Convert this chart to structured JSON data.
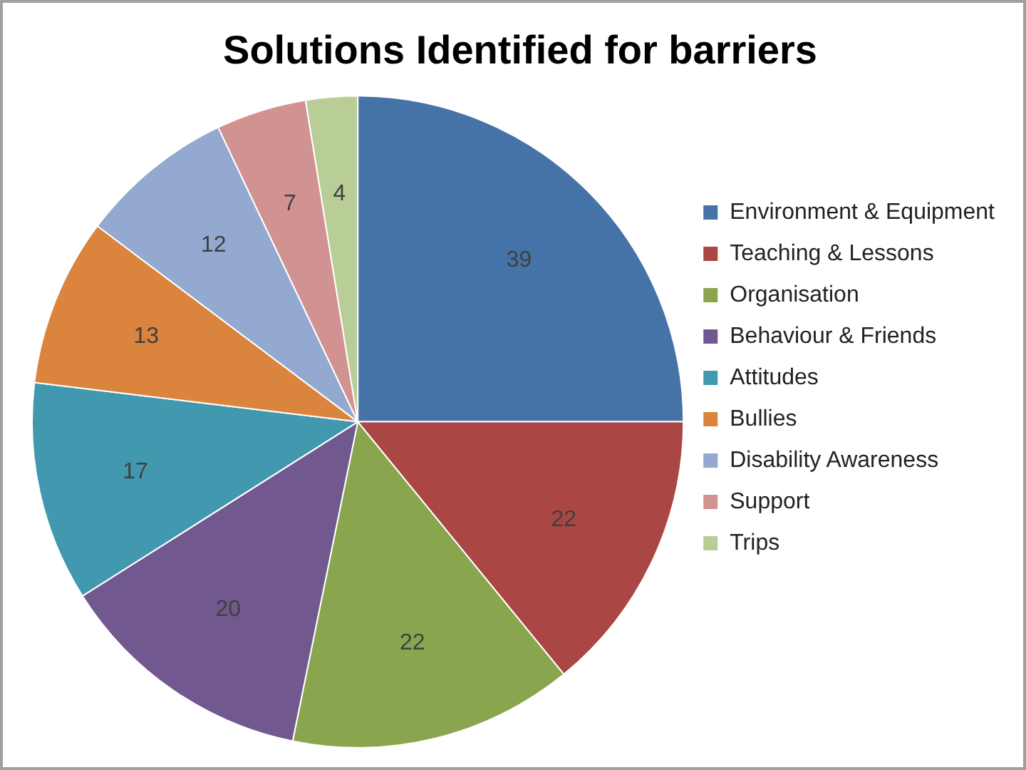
{
  "chart_data": {
    "type": "pie",
    "title": "Solutions Identified for barriers",
    "categories": [
      "Environment & Equipment",
      "Teaching & Lessons",
      "Organisation",
      "Behaviour & Friends",
      "Attitudes",
      "Bullies",
      "Disability Awareness",
      "Support",
      "Trips"
    ],
    "values": [
      39,
      22,
      22,
      20,
      17,
      13,
      12,
      7,
      4
    ],
    "colors": [
      "#4572a7",
      "#aa4643",
      "#89a54e",
      "#71588f",
      "#4198af",
      "#db843d",
      "#93a9cf",
      "#d19392",
      "#b9cd96"
    ],
    "data_labels": true,
    "legend": "right"
  }
}
